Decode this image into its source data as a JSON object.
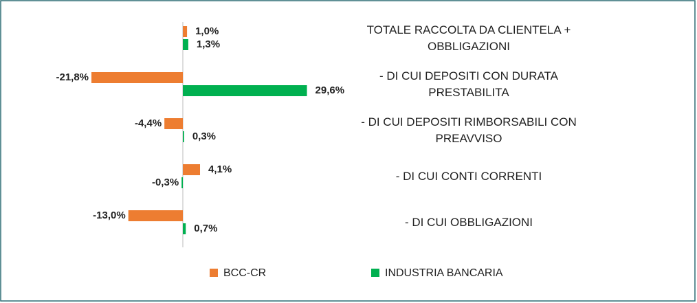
{
  "chart_data": {
    "type": "bar",
    "orientation": "horizontal",
    "categories": [
      "TOTALE RACCOLTA DA CLIENTELA +\nOBBLIGAZIONI",
      "- DI CUI DEPOSITI CON DURATA\nPRESTABILITA",
      "- DI CUI DEPOSITI RIMBORSABILI CON\nPREAVVISO",
      "- DI CUI CONTI CORRENTI",
      "- DI CUI OBBLIGAZIONI"
    ],
    "series": [
      {
        "name": "BCC-CR",
        "color": "#ed7d31",
        "values": [
          1.0,
          -21.8,
          -4.4,
          4.1,
          -13.0
        ],
        "value_labels": [
          "1,0%",
          "-21,8%",
          "-4,4%",
          "4,1%",
          "-13,0%"
        ]
      },
      {
        "name": "INDUSTRIA BANCARIA",
        "color": "#00b050",
        "values": [
          1.3,
          29.6,
          0.3,
          -0.3,
          0.7
        ],
        "value_labels": [
          "1,3%",
          "29,6%",
          "0,3%",
          "-0,3%",
          "0,7%"
        ]
      }
    ],
    "xlim": [
      -25,
      35
    ]
  }
}
